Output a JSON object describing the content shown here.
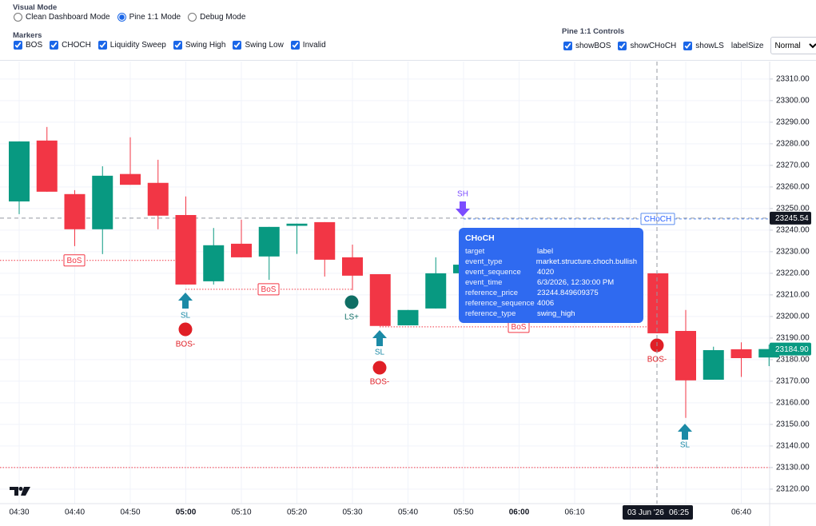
{
  "visual_mode": {
    "title": "Visual Mode",
    "options": [
      {
        "label": "Clean Dashboard Mode",
        "selected": false
      },
      {
        "label": "Pine 1:1 Mode",
        "selected": true
      },
      {
        "label": "Debug Mode",
        "selected": false
      }
    ]
  },
  "markers": {
    "title": "Markers",
    "options": [
      {
        "label": "BOS",
        "checked": true
      },
      {
        "label": "CHOCH",
        "checked": true
      },
      {
        "label": "Liquidity Sweep",
        "checked": true
      },
      {
        "label": "Swing High",
        "checked": true
      },
      {
        "label": "Swing Low",
        "checked": true
      },
      {
        "label": "Invalid",
        "checked": true
      }
    ]
  },
  "pine_controls": {
    "title": "Pine 1:1 Controls",
    "options": [
      {
        "label": "showBOS",
        "checked": true
      },
      {
        "label": "showCHoCH",
        "checked": true
      },
      {
        "label": "showLS",
        "checked": true
      }
    ],
    "label_size": {
      "label": "labelSize",
      "value": "Normal"
    }
  },
  "chart_data": {
    "type": "candlestick",
    "categories": [
      "04:30",
      null,
      "04:40",
      null,
      "04:50",
      null,
      "05:00",
      null,
      "05:10",
      null,
      "05:20",
      null,
      "05:30",
      null,
      "05:40",
      null,
      "05:50",
      null,
      "06:00",
      null,
      "06:10",
      null,
      null,
      null,
      null,
      null,
      "06:40",
      null
    ],
    "open": [
      23253.3,
      23281.5,
      23256.7,
      23240.4,
      23266,
      23261.9,
      23247,
      23216.3,
      23233.7,
      23227.8,
      23242,
      23243.7,
      23227.4,
      23219.6,
      23195.9,
      23203.7,
      23220,
      null,
      null,
      null,
      null,
      null,
      null,
      23220,
      23193.3,
      23170.7,
      23184.8,
      23181
    ],
    "high": [
      23281.1,
      23287.8,
      23258.5,
      23269.6,
      23283,
      23272.6,
      23255.6,
      23241,
      23244.8,
      23241.5,
      23243,
      23243.7,
      23233.3,
      23219.6,
      23203,
      23227.4,
      23225,
      null,
      null,
      null,
      null,
      null,
      null,
      23220,
      23203,
      23186,
      23188,
      23187
    ],
    "low": [
      23247.4,
      23257.8,
      23232.6,
      23228.9,
      23261,
      23240.4,
      23214.8,
      23214.8,
      23227.4,
      23217,
      23229,
      23218.5,
      23212.2,
      23195.6,
      23195.9,
      23203.7,
      23219,
      null,
      null,
      null,
      null,
      null,
      null,
      23192.2,
      23153,
      23170.7,
      23172,
      23177
    ],
    "close": [
      23281.1,
      23257.8,
      23240.4,
      23265.2,
      23261,
      23246.7,
      23214.8,
      23233,
      23227.4,
      23241.5,
      23243,
      23226.3,
      23218.9,
      23195.6,
      23203,
      23220,
      23224,
      null,
      null,
      null,
      null,
      null,
      null,
      23192.2,
      23170.4,
      23184.4,
      23180.7,
      23184.9
    ],
    "up_color": "#089981",
    "down_color": "#f23645",
    "ylim": [
      23113.3,
      23318.1
    ],
    "yticks": [
      {
        "value": 23120,
        "label": "23120.00"
      },
      {
        "value": 23130,
        "label": "23130.00"
      },
      {
        "value": 23140,
        "label": "23140.00"
      },
      {
        "value": 23150,
        "label": "23150.00"
      },
      {
        "value": 23160,
        "label": "23160.00"
      },
      {
        "value": 23170,
        "label": "23170.00"
      },
      {
        "value": 23180,
        "label": "23180.00"
      },
      {
        "value": 23190,
        "label": "23190.00"
      },
      {
        "value": 23200,
        "label": "23200.00"
      },
      {
        "value": 23210,
        "label": "23210.00"
      },
      {
        "value": 23220,
        "label": "23220.00"
      },
      {
        "value": 23230,
        "label": "23230.00"
      },
      {
        "value": 23240,
        "label": "23240.00"
      },
      {
        "value": 23250,
        "label": "23250.00"
      },
      {
        "value": 23260,
        "label": "23260.00"
      },
      {
        "value": 23270,
        "label": "23270.00"
      },
      {
        "value": 23280,
        "label": "23280.00"
      },
      {
        "value": 23290,
        "label": "23290.00"
      },
      {
        "value": 23300,
        "label": "23300.00"
      },
      {
        "value": 23310,
        "label": "23310.00"
      }
    ],
    "grid": true,
    "levels": [
      {
        "label": "BoS",
        "price": 23226
      },
      {
        "label": "BoS",
        "price": 23212.6
      },
      {
        "label": "BoS",
        "price": 23195.2
      },
      {
        "price": 23130
      }
    ],
    "choch": {
      "label": "CHoCH",
      "price": 23245.54
    },
    "crosshair": {
      "price": {
        "value": 23245.54,
        "label": "23245.54"
      },
      "date": "03 Jun '26",
      "time": "06:25"
    },
    "current_price": {
      "value": 23184.9,
      "label": "23184.90"
    },
    "signals": [
      "SL",
      "BOS-",
      "LS+",
      "SL",
      "BOS-",
      "BOS-",
      "SL",
      "SH"
    ],
    "tooltip": {
      "title": "CHoCH",
      "rows": [
        [
          "target",
          "label"
        ],
        [
          "event_type",
          "market.structure.choch.bullish"
        ],
        [
          "event_sequence",
          "4020"
        ],
        [
          "event_time",
          "6/3/2026, 12:30:00 PM"
        ],
        [
          "reference_price",
          "23244.849609375"
        ],
        [
          "reference_sequence",
          "4006"
        ],
        [
          "reference_type",
          "swing_high"
        ]
      ]
    }
  }
}
